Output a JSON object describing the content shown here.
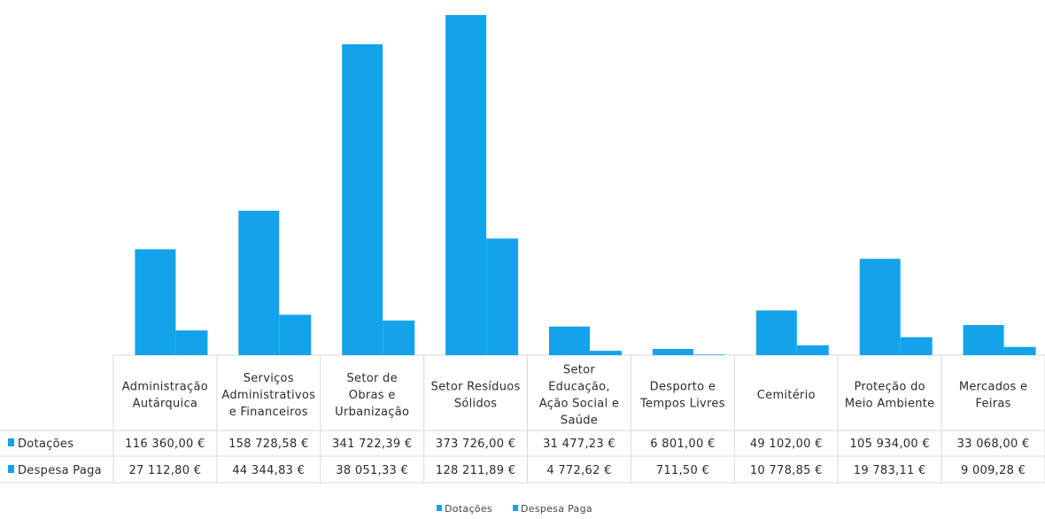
{
  "chart_data": {
    "type": "bar",
    "title": "",
    "xlabel": "",
    "ylabel": "",
    "ylim": [
      0,
      380000
    ],
    "grid": false,
    "legend_position": "bottom",
    "categories": [
      [
        "Administração",
        "Autárquica"
      ],
      [
        "Serviços",
        "Administrativos",
        "e Financeiros"
      ],
      [
        "Setor de",
        "Obras e",
        "Urbanização"
      ],
      [
        "Setor Resíduos",
        "Sólidos"
      ],
      [
        "Setor",
        "Educação,",
        "Ação Social e",
        "Saúde"
      ],
      [
        "Desporto e",
        "Tempos Livres"
      ],
      [
        "Cemitério"
      ],
      [
        "Proteção do",
        "Meio Ambiente"
      ],
      [
        "Mercados e",
        "Feiras"
      ]
    ],
    "series": [
      {
        "name": "Dotações",
        "color": "#13a3ea",
        "values": [
          116360.0,
          158728.58,
          341722.39,
          373726.0,
          31477.23,
          6801.0,
          49102.0,
          105934.0,
          33068.0
        ],
        "labels": [
          "116 360,00 €",
          "158 728,58 €",
          "341 722,39 €",
          "373 726,00 €",
          "31 477,23 €",
          "6 801,00 €",
          "49 102,00 €",
          "105 934,00 €",
          "33 068,00 €"
        ]
      },
      {
        "name": "Despesa Paga",
        "color": "#13a3ea",
        "values": [
          27112.8,
          44344.83,
          38051.33,
          128211.89,
          4772.62,
          711.5,
          10778.85,
          19783.11,
          9009.28
        ],
        "labels": [
          "27 112,80 €",
          "44 344,83 €",
          "38 051,33 €",
          "128 211,89 €",
          "4 772,62 €",
          "711,50 €",
          "10 778,85 €",
          "19 783,11 €",
          "9 009,28 €"
        ]
      }
    ]
  }
}
